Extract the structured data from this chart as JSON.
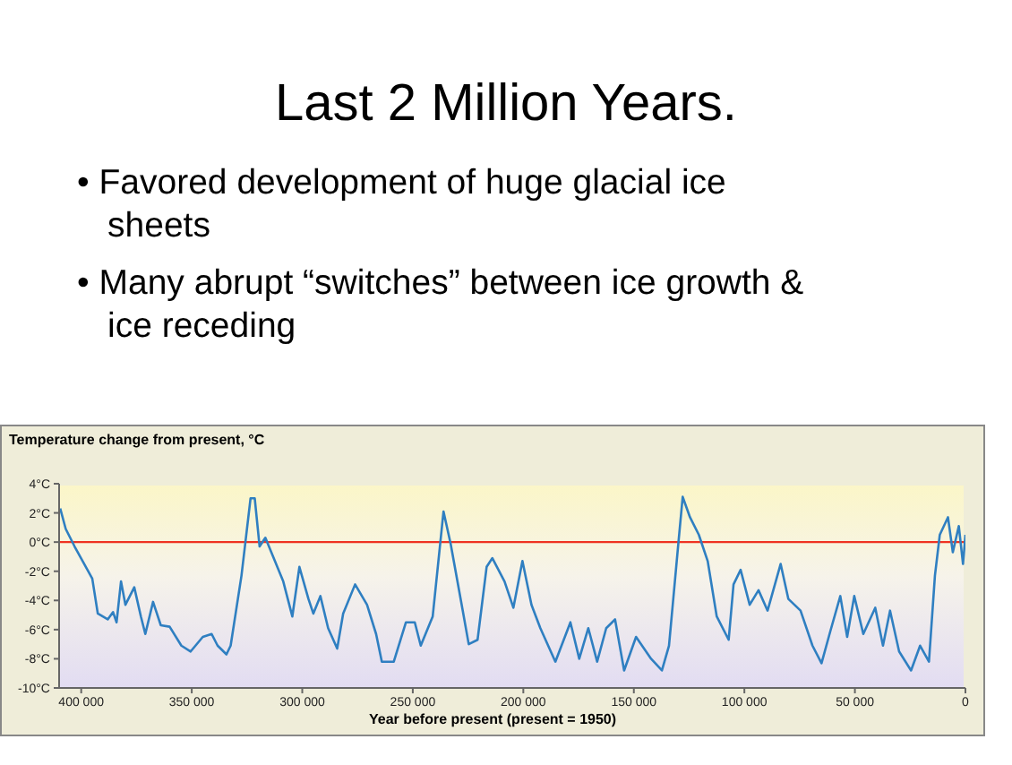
{
  "chart_data": {
    "type": "line",
    "title": "Last 2 Million Years.",
    "annotations": [
      "• Favored development of huge glacial ice sheets",
      "• Many abrupt “switches” between ice growth & ice receding"
    ],
    "ylabel": "Temperature change from present, °C",
    "xlabel": "Year before present (present = 1950)",
    "xlim": [
      410000,
      0
    ],
    "xticks": [
      {
        "value": 400000,
        "label": "400 000"
      },
      {
        "value": 350000,
        "label": "350 000"
      },
      {
        "value": 300000,
        "label": "300 000"
      },
      {
        "value": 250000,
        "label": "250 000"
      },
      {
        "value": 200000,
        "label": "200 000"
      },
      {
        "value": 150000,
        "label": "150 000"
      },
      {
        "value": 100000,
        "label": "100 000"
      },
      {
        "value": 50000,
        "label": "50 000"
      },
      0
    ],
    "ylim": [
      -10,
      4
    ],
    "yticks": [
      {
        "value": 4,
        "label": "4°C"
      },
      {
        "value": 2,
        "label": "2°C"
      },
      {
        "value": 0,
        "label": "0°C"
      },
      {
        "value": -2,
        "label": "-2°C"
      },
      {
        "value": -4,
        "label": "-4°C"
      },
      {
        "value": -6,
        "label": "-6°C"
      },
      {
        "value": -8,
        "label": "-8°C"
      },
      {
        "value": -10,
        "label": "-10°C"
      }
    ],
    "ref_lines": [
      {
        "axis": "y",
        "value": 0,
        "color": "#ee3322"
      }
    ],
    "series": [
      {
        "color": "#2f7fc1",
        "x": [
          409500,
          407000,
          403000,
          395000,
          392500,
          388000,
          385600,
          384000,
          382000,
          380000,
          376000,
          373000,
          371000,
          367500,
          364000,
          360000,
          354700,
          350500,
          345000,
          341000,
          338300,
          334300,
          332400,
          327500,
          323400,
          321500,
          319300,
          316700,
          308600,
          304500,
          301300,
          297200,
          295000,
          291800,
          288300,
          284200,
          281500,
          276100,
          270700,
          266600,
          264000,
          258600,
          253100,
          249100,
          246400,
          241000,
          236100,
          232900,
          227400,
          224700,
          220700,
          216600,
          214000,
          208500,
          204500,
          200400,
          196300,
          192300,
          185500,
          178700,
          174700,
          170600,
          166600,
          162500,
          158500,
          154400,
          149000,
          142200,
          137300,
          134100,
          130000,
          127900,
          124600,
          120600,
          116600,
          112500,
          107100,
          104900,
          101700,
          97600,
          93600,
          89500,
          83600,
          80100,
          74600,
          69200,
          65100,
          61100,
          56600,
          53500,
          50300,
          46200,
          40800,
          37300,
          34100,
          30000,
          24600,
          20500,
          16500,
          13800,
          11600,
          7900,
          5700,
          3000,
          1100,
          0
        ],
        "values": [
          2.3,
          0.9,
          -0.3,
          -2.5,
          -4.9,
          -5.3,
          -4.8,
          -5.5,
          -2.7,
          -4.3,
          -3.1,
          -5.1,
          -6.3,
          -4.1,
          -5.7,
          -5.8,
          -7.1,
          -7.5,
          -6.5,
          -6.3,
          -7.1,
          -7.7,
          -7.1,
          -2.3,
          3.0,
          3.0,
          -0.3,
          0.3,
          -2.7,
          -5.1,
          -1.7,
          -3.9,
          -4.9,
          -3.7,
          -5.9,
          -7.3,
          -4.9,
          -2.9,
          -4.3,
          -6.3,
          -8.2,
          -8.2,
          -5.5,
          -5.5,
          -7.1,
          -5.1,
          2.1,
          -0.1,
          -4.7,
          -7.0,
          -6.7,
          -1.7,
          -1.1,
          -2.7,
          -4.5,
          -1.3,
          -4.3,
          -5.9,
          -8.2,
          -5.5,
          -8.0,
          -5.9,
          -8.2,
          -5.9,
          -5.3,
          -8.8,
          -6.5,
          -8.0,
          -8.8,
          -7.1,
          -0.3,
          3.1,
          1.7,
          0.5,
          -1.3,
          -5.1,
          -6.7,
          -2.9,
          -1.9,
          -4.3,
          -3.3,
          -4.7,
          -1.5,
          -3.9,
          -4.7,
          -7.1,
          -8.3,
          -6.1,
          -3.7,
          -6.5,
          -3.7,
          -6.3,
          -4.5,
          -7.1,
          -4.7,
          -7.5,
          -8.8,
          -7.1,
          -8.2,
          -2.3,
          0.5,
          1.7,
          -0.7,
          1.1,
          -1.5,
          0.5
        ]
      }
    ]
  }
}
